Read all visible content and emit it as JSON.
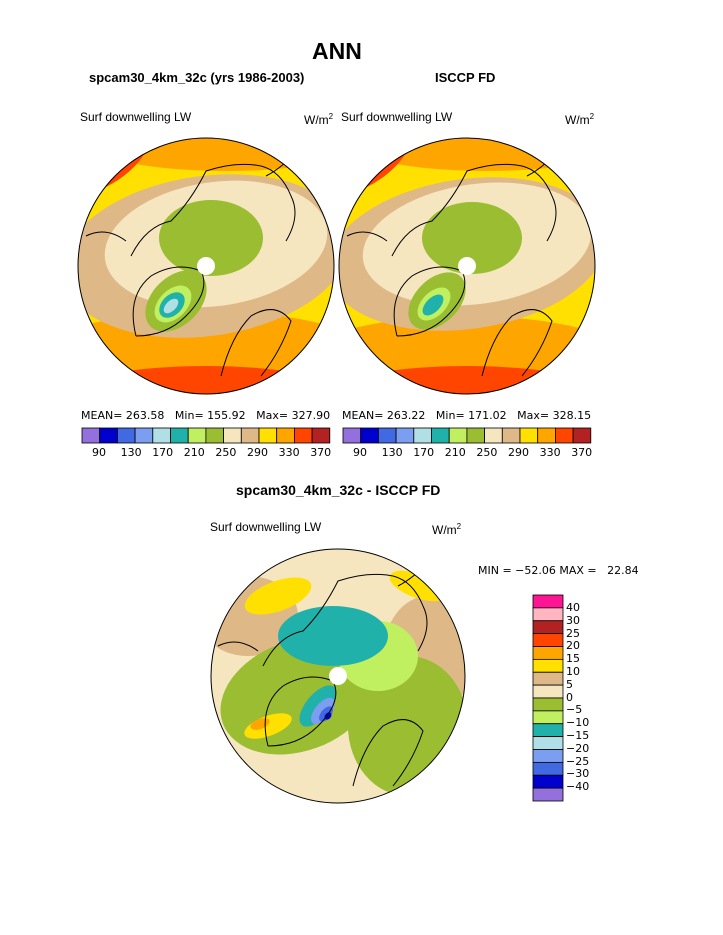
{
  "title": "ANN",
  "panels": [
    {
      "subtitle": "spcam30_4km_32c (yrs 1986-2003)",
      "field": "Surf downwelling LW",
      "units": "W/m",
      "units_exp": "2",
      "stats": {
        "mean_label": "MEAN=",
        "mean": "263.58",
        "min_label": "Min=",
        "min": "155.92",
        "max_label": "Max=",
        "max": "327.90"
      }
    },
    {
      "subtitle": "ISCCP FD",
      "field": "Surf downwelling LW",
      "units": "W/m",
      "units_exp": "2",
      "stats": {
        "mean_label": "MEAN=",
        "mean": "263.22",
        "min_label": "Min=",
        "min": "171.02",
        "max_label": "Max=",
        "max": "328.15"
      }
    }
  ],
  "diff": {
    "subtitle": "spcam30_4km_32c - ISCCP FD",
    "field": "Surf downwelling LW",
    "units": "W/m",
    "units_exp": "2",
    "minmax": "MIN = −52.06 MAX =   22.84"
  },
  "chart_data": [
    {
      "type": "heatmap",
      "projection": "north polar stereographic",
      "title": "spcam30_4km_32c (yrs 1986-2003)",
      "variable": "Surf downwelling LW",
      "units": "W/m2",
      "mean": 263.58,
      "min": 155.92,
      "max": 327.9,
      "colorbar_ticks": [
        "90",
        "130",
        "170",
        "210",
        "250",
        "290",
        "330",
        "370"
      ],
      "colors": [
        "#9370DB",
        "#0000CD",
        "#4169E1",
        "#7B9EF0",
        "#B0E0E6",
        "#20B2AA",
        "#C0F060",
        "#9ABD32",
        "#F5E6C0",
        "#DEB887",
        "#FFE000",
        "#FFA500",
        "#FF4500",
        "#B22222",
        "#FFB6C1",
        "#FF1493"
      ]
    },
    {
      "type": "heatmap",
      "projection": "north polar stereographic",
      "title": "ISCCP FD",
      "variable": "Surf downwelling LW",
      "units": "W/m2",
      "mean": 263.22,
      "min": 171.02,
      "max": 328.15,
      "colorbar_ticks": [
        "90",
        "130",
        "170",
        "210",
        "250",
        "290",
        "330",
        "370"
      ]
    },
    {
      "type": "heatmap",
      "projection": "north polar stereographic",
      "title": "spcam30_4km_32c - ISCCP FD",
      "variable": "Surf downwelling LW",
      "units": "W/m2",
      "min": -52.06,
      "max": 22.84,
      "colorbar_ticks": [
        "40",
        "30",
        "25",
        "20",
        "15",
        "10",
        "5",
        "0",
        "−5",
        "−10",
        "−15",
        "−20",
        "−25",
        "−30",
        "−40"
      ],
      "colors_top_to_bottom": [
        "#FF1493",
        "#FFB6C1",
        "#B22222",
        "#FF4500",
        "#FFA500",
        "#FFE000",
        "#DEB887",
        "#F5E6C0",
        "#9ABD32",
        "#C0F060",
        "#20B2AA",
        "#B0E0E6",
        "#7B9EF0",
        "#4169E1",
        "#0000CD",
        "#9370DB"
      ]
    }
  ]
}
